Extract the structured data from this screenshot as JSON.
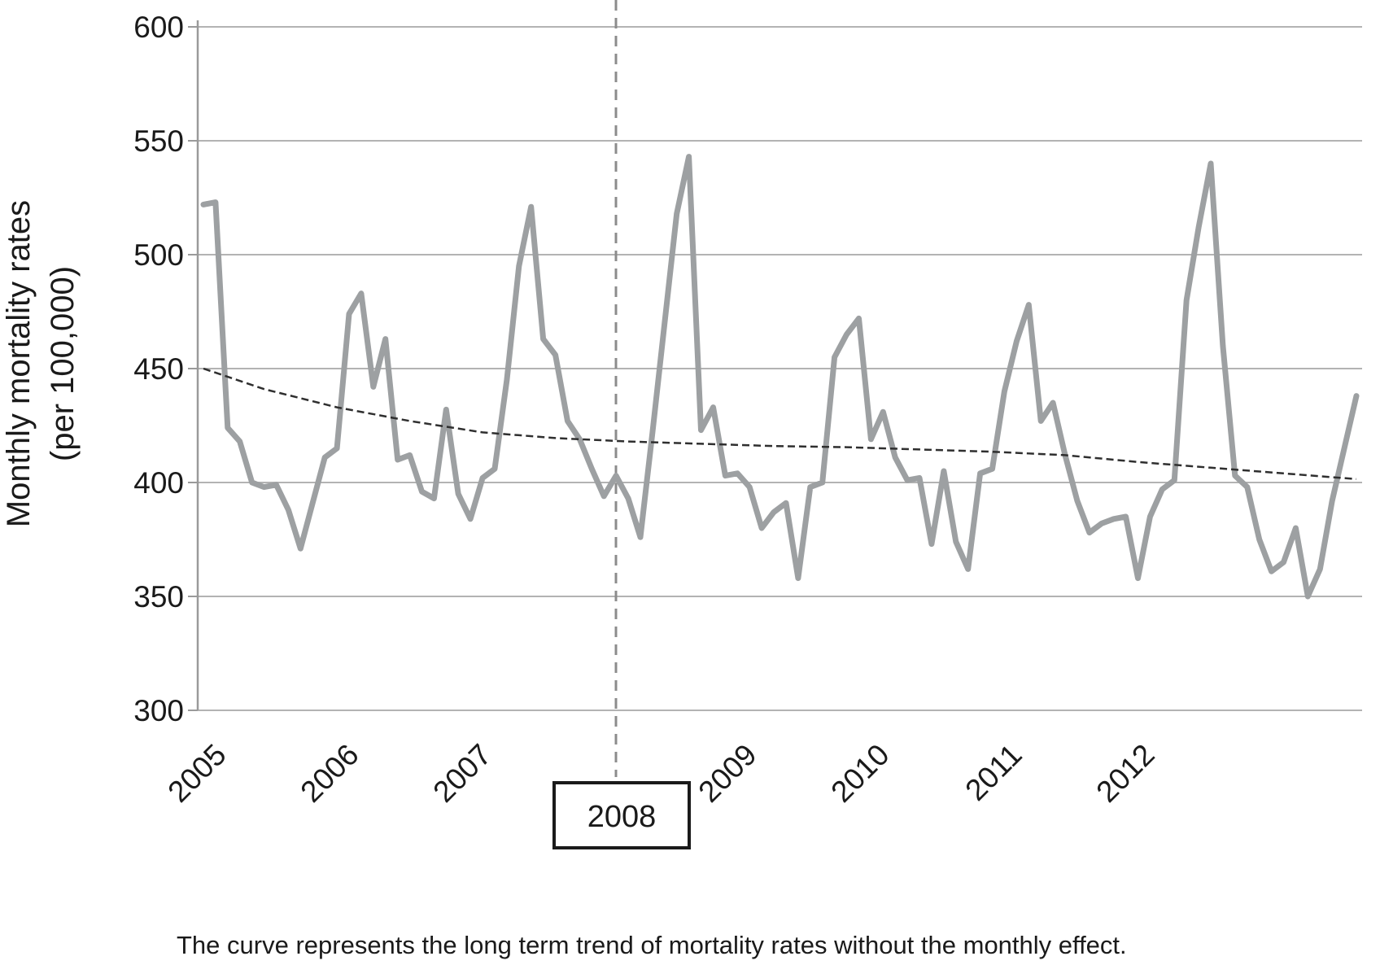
{
  "figure": {
    "caption": "The curve represents the long term trend of mortality rates without the monthly effect."
  },
  "chart_data": {
    "type": "line",
    "title": "",
    "ylabel_line1": "Monthly mortality rates",
    "ylabel_line2": "(per 100,000)",
    "xlabel": "",
    "ylim": [
      300,
      600
    ],
    "y_ticks": [
      600,
      550,
      500,
      450,
      400,
      350,
      300
    ],
    "x_tick_years": [
      "2005",
      "2006",
      "2007",
      "2008",
      "2009",
      "2010",
      "2011",
      "2012"
    ],
    "highlight_year_label": "2008",
    "grid": "horizontal",
    "legend": "none",
    "x_unit": "month (Jan 2005 - Dec 2012)",
    "series": [
      {
        "name": "monthly mortality rate",
        "color": "#9da0a2",
        "line_width": 7,
        "monthly_values_by_year": {
          "2005": [
            522,
            523,
            424,
            418,
            400,
            398,
            399,
            388,
            371,
            391,
            411,
            415
          ],
          "2006": [
            474,
            483,
            442,
            463,
            410,
            412,
            396,
            393,
            432,
            395,
            384,
            402
          ],
          "2007": [
            406,
            445,
            495,
            521,
            463,
            456,
            427,
            419,
            406,
            394,
            403,
            393
          ],
          "2008": [
            376,
            422,
            470,
            518,
            543,
            423,
            433,
            403,
            404,
            398,
            380,
            387
          ],
          "2009": [
            391,
            358,
            398,
            400,
            455,
            465,
            472,
            419,
            431,
            411,
            401,
            402
          ],
          "2010": [
            373,
            405,
            374,
            362,
            404,
            406,
            440,
            462,
            478,
            427,
            435,
            412
          ],
          "2011": [
            392,
            378,
            382,
            384,
            385,
            358,
            385,
            397,
            401,
            480,
            512,
            540
          ],
          "2012": [
            460,
            403,
            398,
            375,
            361,
            365,
            380,
            350,
            362,
            392,
            415,
            438
          ]
        }
      },
      {
        "name": "long term trend (without monthly effect)",
        "color": "#2f2f2f",
        "line_style": "dashed",
        "line_width": 2.5,
        "control_points": [
          [
            1,
            450
          ],
          [
            6,
            441
          ],
          [
            12,
            433
          ],
          [
            18,
            427
          ],
          [
            24,
            422
          ],
          [
            30,
            419.5
          ],
          [
            36,
            418
          ],
          [
            42,
            417
          ],
          [
            48,
            416
          ],
          [
            54,
            415.5
          ],
          [
            60,
            414.5
          ],
          [
            66,
            413.5
          ],
          [
            72,
            412
          ],
          [
            78,
            409
          ],
          [
            84,
            406.5
          ],
          [
            90,
            404
          ],
          [
            96,
            401.5
          ]
        ]
      }
    ],
    "event_marker": {
      "year_label": "2008",
      "line_style": "dashed",
      "color": "#8c8c8c"
    },
    "colors": {
      "grid": "#b3b3b3",
      "axis": "#9a9a9a",
      "text": "#1a1a1a",
      "box_border": "#1a1a1a",
      "background": "#ffffff"
    }
  }
}
